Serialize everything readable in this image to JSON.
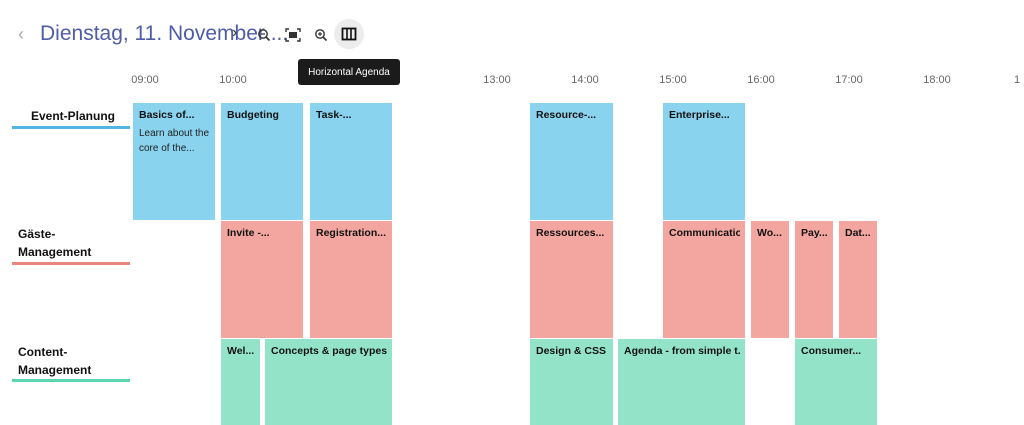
{
  "header": {
    "date_title": "Dienstag, 11. November ...",
    "prev_glyph": "‹",
    "next_glyph": "›",
    "tools": [
      {
        "name": "zoom-out-icon"
      },
      {
        "name": "fit-to-screen-icon"
      },
      {
        "name": "zoom-in-icon"
      },
      {
        "name": "horizontal-agenda-icon"
      }
    ],
    "tooltip": "Horizontal Agenda"
  },
  "timeline": {
    "hours": [
      "09:00",
      "10:00",
      "",
      "13:00",
      "14:00",
      "15:00",
      "16:00",
      "17:00",
      "18:00",
      "1"
    ]
  },
  "groups": [
    {
      "label": "Event-Planung",
      "color": "#52b6e3"
    },
    {
      "label": "Gäste- Management",
      "color": "#e8867d"
    },
    {
      "label": "Content- Management",
      "color": "#5dd5ad"
    }
  ],
  "events": {
    "planning": [
      {
        "title": "Basics of...",
        "desc": "Learn about the core of the..."
      },
      {
        "title": "Budgeting"
      },
      {
        "title": "Task-..."
      },
      {
        "title": "Resource-..."
      },
      {
        "title": "Enterprise..."
      }
    ],
    "guests": [
      {
        "title": "Invite -..."
      },
      {
        "title": "Registration..."
      },
      {
        "title": "Ressources..."
      },
      {
        "title": "Communication"
      },
      {
        "title": "Wo..."
      },
      {
        "title": "Pay..."
      },
      {
        "title": "Dat..."
      }
    ],
    "content": [
      {
        "title": "Wel..."
      },
      {
        "title": "Concepts & page types"
      },
      {
        "title": "Design & CSS"
      },
      {
        "title": "Agenda - from simple t..."
      },
      {
        "title": "Consumer..."
      }
    ]
  },
  "colors": {
    "blue": "#8ad3ef",
    "red": "#f3a6a0",
    "green": "#93e3c9",
    "title": "#4f5ca8"
  }
}
